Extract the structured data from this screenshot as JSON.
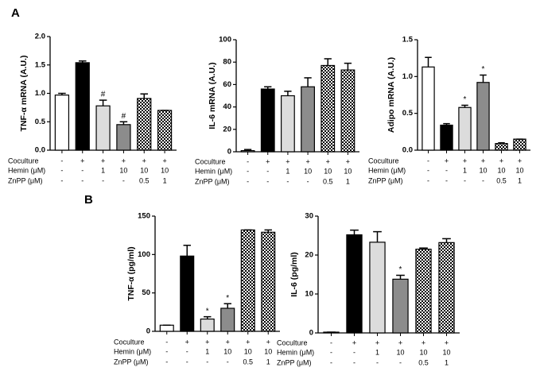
{
  "panel_labels": [
    "A",
    "B"
  ],
  "chart_data": [
    {
      "type": "bar",
      "y_label": "TNF-α mRNA (A.U.)",
      "values": [
        0.97,
        1.54,
        0.78,
        0.45,
        0.91,
        0.7
      ],
      "errors": [
        0.03,
        0.03,
        0.1,
        0.05,
        0.08,
        0
      ],
      "annotations": [
        null,
        null,
        "#",
        "#",
        null,
        null
      ],
      "colors": [
        "#ffffff",
        "#000000",
        "#dcdcdc",
        "#8c8c8c",
        "#000000",
        "#000000"
      ],
      "checkered": [
        false,
        false,
        false,
        false,
        true,
        true
      ],
      "ylim": [
        0,
        2.0
      ],
      "yticks": [
        {
          "value": 0,
          "label": "0.0"
        },
        0.5,
        {
          "value": 1,
          "label": "1.0"
        },
        1.5,
        {
          "value": 2,
          "label": "2.0"
        }
      ],
      "conditions": [
        {
          "label": "Coculture",
          "values": [
            "-",
            "+",
            "+",
            "+",
            "+",
            "+"
          ]
        },
        {
          "label": "Hemin (μM)",
          "values": [
            "-",
            "-",
            "1",
            "10",
            "10",
            "10"
          ]
        },
        {
          "label": "ZnPP (μM)",
          "values": [
            "-",
            "-",
            "-",
            "-",
            "0.5",
            "1"
          ]
        }
      ]
    },
    {
      "type": "bar",
      "y_label": "IL-6 mRNA (A.U.)",
      "values": [
        1,
        56,
        50,
        58,
        77,
        73
      ],
      "errors": [
        1,
        2,
        4,
        8,
        6,
        6
      ],
      "annotations": [
        null,
        null,
        null,
        null,
        null,
        null
      ],
      "colors": [
        "#ffffff",
        "#000000",
        "#dcdcdc",
        "#8c8c8c",
        "#000000",
        "#000000"
      ],
      "checkered": [
        false,
        false,
        false,
        false,
        true,
        true
      ],
      "ylim": [
        0,
        100
      ],
      "yticks": [
        0,
        20,
        40,
        60,
        80,
        100
      ],
      "conditions": [
        {
          "label": "Coculture",
          "values": [
            "-",
            "+",
            "+",
            "+",
            "+",
            "+"
          ]
        },
        {
          "label": "Hemin (μM)",
          "values": [
            "-",
            "-",
            "1",
            "10",
            "10",
            "10"
          ]
        },
        {
          "label": "ZnPP (μM)",
          "values": [
            "-",
            "-",
            "-",
            "-",
            "0.5",
            "1"
          ]
        }
      ]
    },
    {
      "type": "bar",
      "y_label": "Adipo mRNA (A.U.)",
      "values": [
        1.13,
        0.34,
        0.58,
        0.92,
        0.09,
        0.15
      ],
      "errors": [
        0.13,
        0.02,
        0.03,
        0.1,
        0.01,
        0
      ],
      "annotations": [
        null,
        null,
        "*",
        "*",
        null,
        null
      ],
      "colors": [
        "#ffffff",
        "#000000",
        "#dcdcdc",
        "#8c8c8c",
        "#000000",
        "#000000"
      ],
      "checkered": [
        false,
        false,
        false,
        false,
        true,
        true
      ],
      "ylim": [
        0,
        1.5
      ],
      "yticks": [
        {
          "value": 0,
          "label": "0.0"
        },
        0.5,
        {
          "value": 1,
          "label": "1.0"
        },
        1.5
      ],
      "conditions": [
        {
          "label": "Coculture",
          "values": [
            "-",
            "+",
            "+",
            "+",
            "+",
            "+"
          ]
        },
        {
          "label": "Hemin (μM)",
          "values": [
            "-",
            "-",
            "1",
            "10",
            "10",
            "10"
          ]
        },
        {
          "label": "ZnPP (μM)",
          "values": [
            "-",
            "-",
            "-",
            "-",
            "0.5",
            "1"
          ]
        }
      ]
    },
    {
      "type": "bar",
      "y_label": "TNF-α (pg/ml)",
      "values": [
        8,
        98,
        16,
        30,
        132,
        129
      ],
      "errors": [
        0,
        14,
        3,
        6,
        0,
        3
      ],
      "annotations": [
        null,
        null,
        "*",
        "*",
        null,
        null
      ],
      "colors": [
        "#ffffff",
        "#000000",
        "#dcdcdc",
        "#8c8c8c",
        "#000000",
        "#000000"
      ],
      "checkered": [
        false,
        false,
        false,
        false,
        true,
        true
      ],
      "ylim": [
        0,
        150
      ],
      "yticks": [
        0,
        50,
        100,
        150
      ],
      "conditions": [
        {
          "label": "Coculture",
          "values": [
            "-",
            "+",
            "+",
            "+",
            "+",
            "+"
          ]
        },
        {
          "label": "Hemin (μM)",
          "values": [
            "-",
            "-",
            "1",
            "10",
            "10",
            "10"
          ]
        },
        {
          "label": "ZnPP (μM)",
          "values": [
            "-",
            "-",
            "-",
            "-",
            "0.5",
            "1"
          ]
        }
      ]
    },
    {
      "type": "bar",
      "y_label": "IL-6  (pg/ml)",
      "values": [
        0.2,
        25.2,
        23.3,
        13.8,
        21.5,
        23.2
      ],
      "errors": [
        0,
        1.2,
        2.7,
        1,
        0.3,
        1
      ],
      "annotations": [
        null,
        null,
        null,
        "*",
        null,
        null
      ],
      "colors": [
        "#ffffff",
        "#000000",
        "#dcdcdc",
        "#8c8c8c",
        "#000000",
        "#000000"
      ],
      "checkered": [
        false,
        false,
        false,
        false,
        true,
        true
      ],
      "ylim": [
        0,
        30
      ],
      "yticks": [
        0,
        10,
        20,
        30
      ],
      "conditions": [
        {
          "label": "Coculture",
          "values": [
            "-",
            "+",
            "+",
            "+",
            "+",
            "+"
          ]
        },
        {
          "label": "Hemin (μM)",
          "values": [
            "-",
            "-",
            "1",
            "10",
            "10",
            "10"
          ]
        },
        {
          "label": "ZnPP (μM)",
          "values": [
            "-",
            "-",
            "-",
            "-",
            "0.5",
            "1"
          ]
        }
      ]
    }
  ]
}
